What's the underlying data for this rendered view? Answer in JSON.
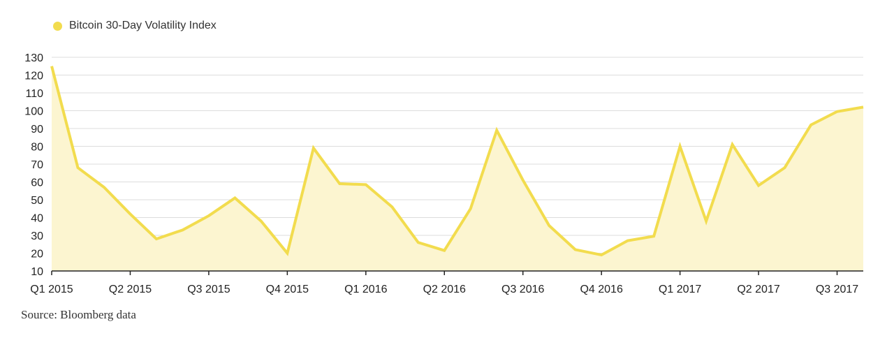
{
  "colors": {
    "line": "#F2DC4E",
    "area": "#FCF5D0",
    "grid": "#DDDDDD",
    "axis": "#222222"
  },
  "legend": {
    "label": "Bitcoin 30-Day Volatility Index"
  },
  "source": "Source: Bloomberg data",
  "chart_data": {
    "type": "area",
    "grid": true,
    "legend_position": "top-left",
    "ylim": [
      10,
      130
    ],
    "yticks": [
      10,
      20,
      30,
      40,
      50,
      60,
      70,
      80,
      90,
      100,
      110,
      120,
      130
    ],
    "xlim": [
      0,
      31
    ],
    "xticks": [
      {
        "x": 0,
        "label": "Q1 2015"
      },
      {
        "x": 3,
        "label": "Q2 2015"
      },
      {
        "x": 6,
        "label": "Q3 2015"
      },
      {
        "x": 9,
        "label": "Q4 2015"
      },
      {
        "x": 12,
        "label": "Q1 2016"
      },
      {
        "x": 15,
        "label": "Q2 2016"
      },
      {
        "x": 18,
        "label": "Q3 2016"
      },
      {
        "x": 21,
        "label": "Q4 2016"
      },
      {
        "x": 24,
        "label": "Q1 2017"
      },
      {
        "x": 27,
        "label": "Q2 2017"
      },
      {
        "x": 30,
        "label": "Q3 2017"
      }
    ],
    "series": [
      {
        "name": "Bitcoin 30-Day Volatility Index",
        "values": [
          125,
          68,
          57,
          42,
          28,
          33,
          41,
          51,
          38,
          20,
          79,
          59,
          58.5,
          46,
          26,
          21.5,
          45,
          89,
          61,
          35.5,
          22,
          19,
          27,
          29.5,
          80,
          38,
          81,
          58,
          68,
          92,
          99.5,
          102
        ]
      }
    ]
  }
}
